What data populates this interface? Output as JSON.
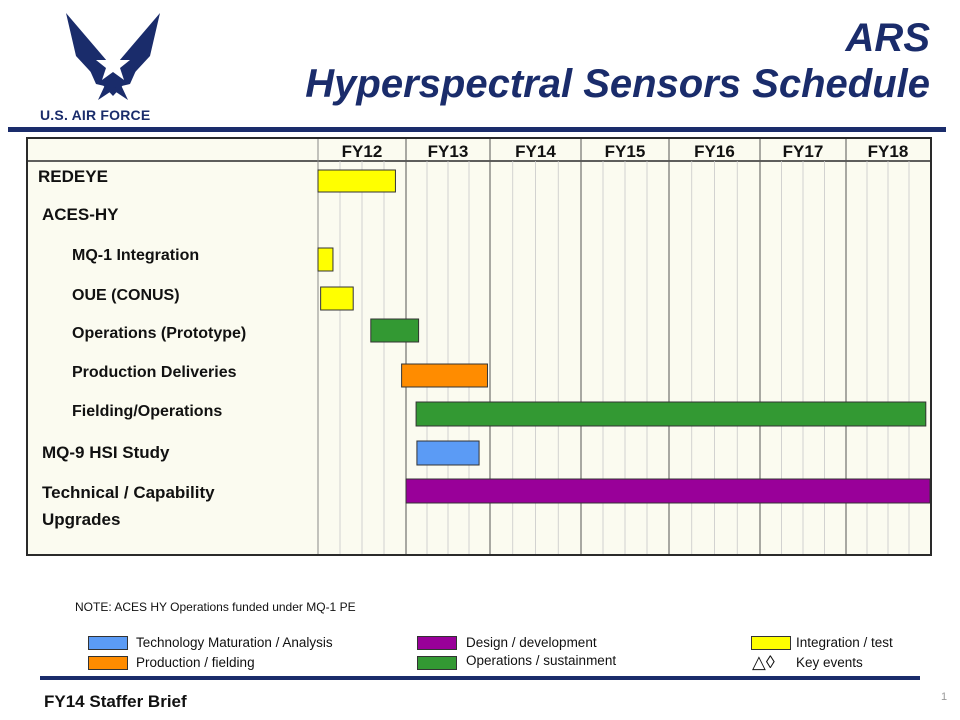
{
  "header": {
    "logo_text": "U.S. AIR FORCE",
    "title_line1": "ARS",
    "title_line2": "Hyperspectral Sensors Schedule",
    "brand_color": "#1a2c6b"
  },
  "chart_data": {
    "type": "gantt",
    "fiscal_years": [
      "FY12",
      "FY13",
      "FY14",
      "FY15",
      "FY16",
      "FY17",
      "FY18"
    ],
    "rows": [
      {
        "label": "REDEYE",
        "indent": 0
      },
      {
        "label": "ACES-HY",
        "indent": 0
      },
      {
        "label": "MQ-1 Integration",
        "indent": 1
      },
      {
        "label": "OUE (CONUS)",
        "indent": 1
      },
      {
        "label": "Operations (Prototype)",
        "indent": 1
      },
      {
        "label": "Production Deliveries",
        "indent": 1
      },
      {
        "label": "Fielding/Operations",
        "indent": 1
      },
      {
        "label": "MQ-9 HSI Study",
        "indent": 0
      },
      {
        "label": "Technical / Capability",
        "label2": "Upgrades",
        "indent": 0
      }
    ],
    "bars": [
      {
        "row": 0,
        "start": 0.0,
        "end": 0.88,
        "category": "integration"
      },
      {
        "row": 2,
        "start": 0.0,
        "end": 0.17,
        "category": "integration"
      },
      {
        "row": 3,
        "start": 0.03,
        "end": 0.4,
        "category": "integration"
      },
      {
        "row": 4,
        "start": 0.6,
        "end": 1.15,
        "category": "operations"
      },
      {
        "row": 5,
        "start": 0.95,
        "end": 1.97,
        "category": "production"
      },
      {
        "row": 6,
        "start": 1.12,
        "end": 6.95,
        "category": "operations"
      },
      {
        "row": 7,
        "start": 1.13,
        "end": 1.87,
        "category": "technology"
      },
      {
        "row": 8,
        "start": 1.0,
        "end": 7.0,
        "category": "design"
      }
    ],
    "colors": {
      "technology": "#5b9bf5",
      "production": "#ff8c00",
      "design": "#990099",
      "operations": "#339933",
      "integration": "#ffff00"
    }
  },
  "note": "NOTE:  ACES HY Operations funded under MQ-1 PE",
  "legend": [
    {
      "label": "Technology  Maturation / Analysis",
      "color": "#5b9bf5"
    },
    {
      "label": "Production / fielding",
      "color": "#ff8c00"
    },
    {
      "label": "Design / development",
      "color": "#990099"
    },
    {
      "label": "Operations / sustainment",
      "color": "#339933"
    },
    {
      "label": "Integration  / test",
      "color": "#ffff00"
    },
    {
      "label": "Key events",
      "symbol": "△◊"
    }
  ],
  "footer": "FY14 Staffer Brief",
  "page_number": "1"
}
